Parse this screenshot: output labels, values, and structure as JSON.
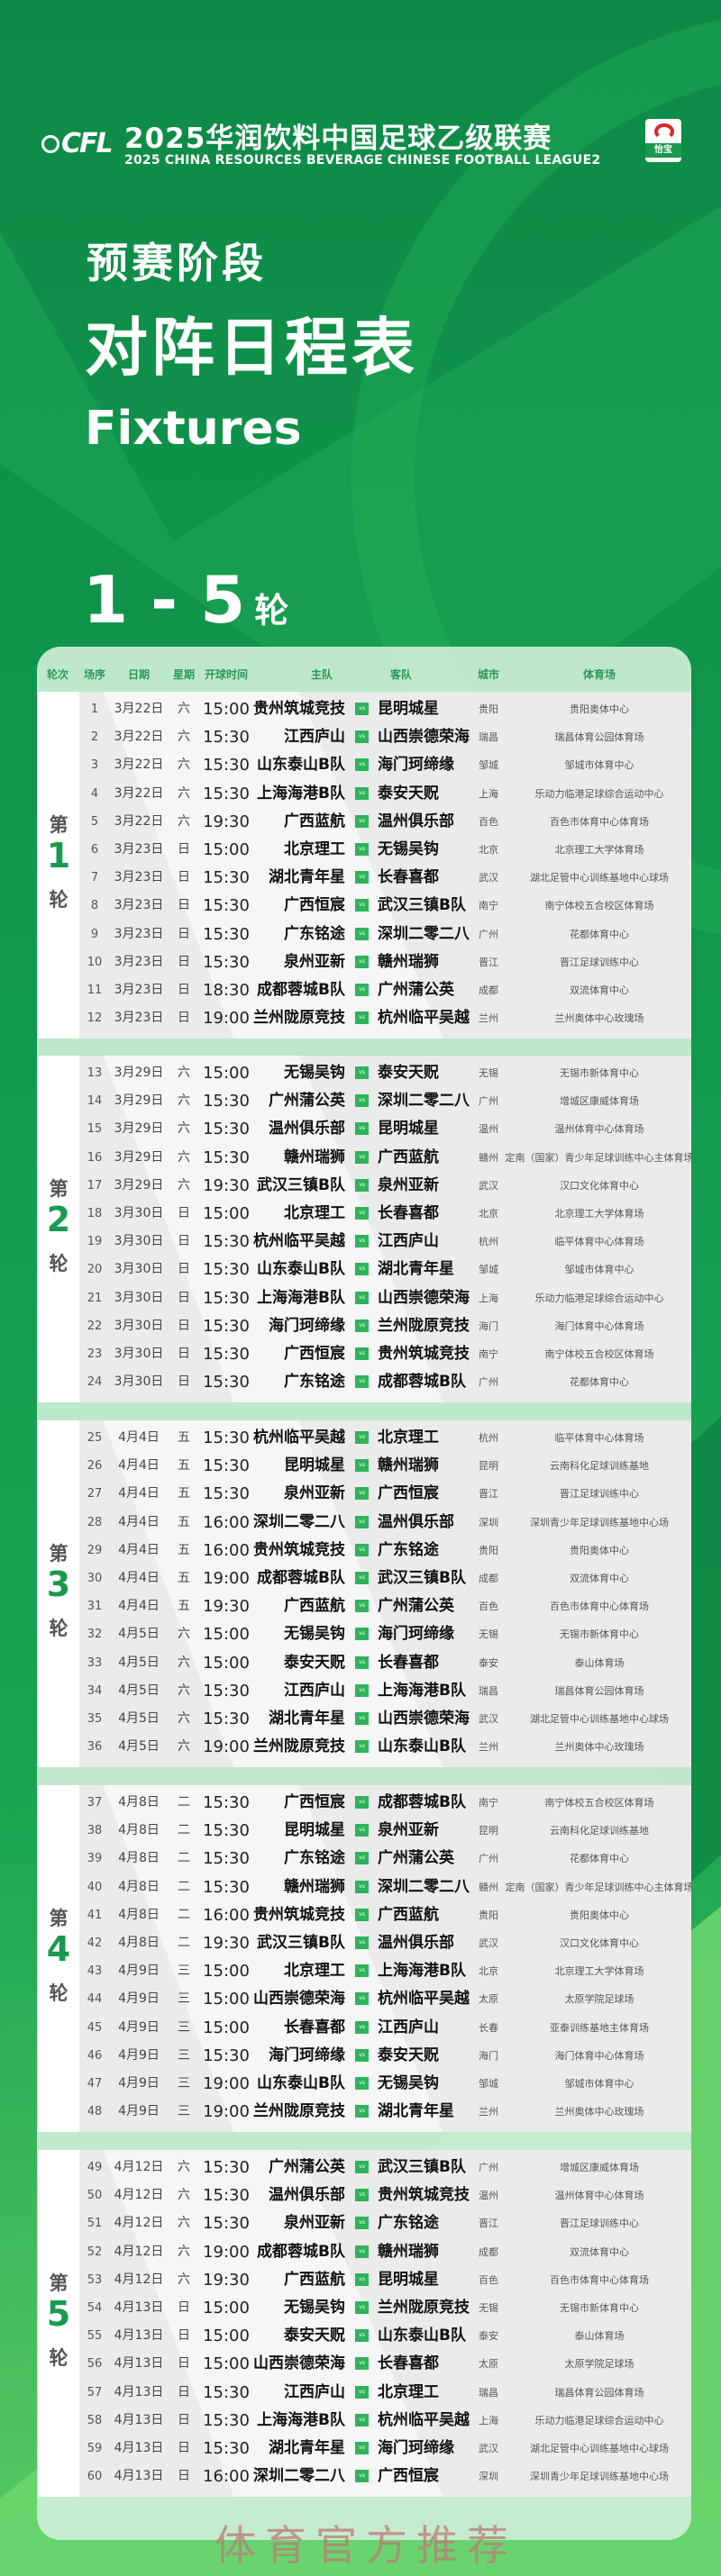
{
  "colors": {
    "accent": "#1a9a50",
    "background": "#0f8c48",
    "vs_badge": "#2fb35a",
    "header_text": "#2a9a57"
  },
  "header": {
    "logo_text": "CFL",
    "title_cn": "2025华润饮料中国足球乙级联赛",
    "title_en": "2025 CHINA RESOURCES BEVERAGE CHINESE FOOTBALL LEAGUE2",
    "sponsor_text": "怡宝"
  },
  "hero": {
    "stage": "预赛阶段",
    "schedule": "对阵日程表",
    "fixtures": "Fixtures",
    "range_num": "1 - 5",
    "range_unit": "轮"
  },
  "table": {
    "columns": [
      "轮次",
      "场序",
      "日期",
      "星期",
      "开球时间",
      "主队",
      "客队",
      "城市",
      "体育场"
    ],
    "vs_label": "vs",
    "rounds": [
      {
        "prefix": "第",
        "number": "1",
        "suffix": "轮",
        "matches": [
          {
            "no": "1",
            "date": "3月22日",
            "day": "六",
            "time": "15:00",
            "home": "贵州筑城竞技",
            "away": "昆明城星",
            "city": "贵阳",
            "venue": "贵阳奥体中心"
          },
          {
            "no": "2",
            "date": "3月22日",
            "day": "六",
            "time": "15:30",
            "home": "江西庐山",
            "away": "山西崇德荣海",
            "city": "瑞昌",
            "venue": "瑞昌体育公园体育场"
          },
          {
            "no": "3",
            "date": "3月22日",
            "day": "六",
            "time": "15:30",
            "home": "山东泰山B队",
            "away": "海门珂缔缘",
            "city": "邹城",
            "venue": "邹城市体育中心"
          },
          {
            "no": "4",
            "date": "3月22日",
            "day": "六",
            "time": "15:30",
            "home": "上海海港B队",
            "away": "泰安天贶",
            "city": "上海",
            "venue": "乐动力临港足球综合运动中心"
          },
          {
            "no": "5",
            "date": "3月22日",
            "day": "六",
            "time": "19:30",
            "home": "广西蓝航",
            "away": "温州俱乐部",
            "city": "百色",
            "venue": "百色市体育中心体育场"
          },
          {
            "no": "6",
            "date": "3月23日",
            "day": "日",
            "time": "15:00",
            "home": "北京理工",
            "away": "无锡吴钩",
            "city": "北京",
            "venue": "北京理工大学体育场"
          },
          {
            "no": "7",
            "date": "3月23日",
            "day": "日",
            "time": "15:30",
            "home": "湖北青年星",
            "away": "长春喜都",
            "city": "武汉",
            "venue": "湖北足管中心训练基地中心球场"
          },
          {
            "no": "8",
            "date": "3月23日",
            "day": "日",
            "time": "15:30",
            "home": "广西恒宸",
            "away": "武汉三镇B队",
            "city": "南宁",
            "venue": "南宁体校五合校区体育场"
          },
          {
            "no": "9",
            "date": "3月23日",
            "day": "日",
            "time": "15:30",
            "home": "广东铭途",
            "away": "深圳二零二八",
            "city": "广州",
            "venue": "花都体育中心"
          },
          {
            "no": "10",
            "date": "3月23日",
            "day": "日",
            "time": "15:30",
            "home": "泉州亚新",
            "away": "赣州瑞狮",
            "city": "晋江",
            "venue": "晋江足球训练中心"
          },
          {
            "no": "11",
            "date": "3月23日",
            "day": "日",
            "time": "18:30",
            "home": "成都蓉城B队",
            "away": "广州蒲公英",
            "city": "成都",
            "venue": "双流体育中心"
          },
          {
            "no": "12",
            "date": "3月23日",
            "day": "日",
            "time": "19:00",
            "home": "兰州陇原竞技",
            "away": "杭州临平吴越",
            "city": "兰州",
            "venue": "兰州奥体中心玫瑰场"
          }
        ]
      },
      {
        "prefix": "第",
        "number": "2",
        "suffix": "轮",
        "matches": [
          {
            "no": "13",
            "date": "3月29日",
            "day": "六",
            "time": "15:00",
            "home": "无锡吴钩",
            "away": "泰安天贶",
            "city": "无锡",
            "venue": "无锡市新体育中心"
          },
          {
            "no": "14",
            "date": "3月29日",
            "day": "六",
            "time": "15:30",
            "home": "广州蒲公英",
            "away": "深圳二零二八",
            "city": "广州",
            "venue": "增城区康威体育场"
          },
          {
            "no": "15",
            "date": "3月29日",
            "day": "六",
            "time": "15:30",
            "home": "温州俱乐部",
            "away": "昆明城星",
            "city": "温州",
            "venue": "温州体育中心体育场"
          },
          {
            "no": "16",
            "date": "3月29日",
            "day": "六",
            "time": "15:30",
            "home": "赣州瑞狮",
            "away": "广西蓝航",
            "city": "赣州",
            "venue": "定南（国家）青少年足球训练中心主体育场"
          },
          {
            "no": "17",
            "date": "3月29日",
            "day": "六",
            "time": "19:30",
            "home": "武汉三镇B队",
            "away": "泉州亚新",
            "city": "武汉",
            "venue": "汉口文化体育中心"
          },
          {
            "no": "18",
            "date": "3月30日",
            "day": "日",
            "time": "15:00",
            "home": "北京理工",
            "away": "长春喜都",
            "city": "北京",
            "venue": "北京理工大学体育场"
          },
          {
            "no": "19",
            "date": "3月30日",
            "day": "日",
            "time": "15:30",
            "home": "杭州临平吴越",
            "away": "江西庐山",
            "city": "杭州",
            "venue": "临平体育中心体育场"
          },
          {
            "no": "20",
            "date": "3月30日",
            "day": "日",
            "time": "15:30",
            "home": "山东泰山B队",
            "away": "湖北青年星",
            "city": "邹城",
            "venue": "邹城市体育中心"
          },
          {
            "no": "21",
            "date": "3月30日",
            "day": "日",
            "time": "15:30",
            "home": "上海海港B队",
            "away": "山西崇德荣海",
            "city": "上海",
            "venue": "乐动力临港足球综合运动中心"
          },
          {
            "no": "22",
            "date": "3月30日",
            "day": "日",
            "time": "15:30",
            "home": "海门珂缔缘",
            "away": "兰州陇原竞技",
            "city": "海门",
            "venue": "海门体育中心体育场"
          },
          {
            "no": "23",
            "date": "3月30日",
            "day": "日",
            "time": "15:30",
            "home": "广西恒宸",
            "away": "贵州筑城竞技",
            "city": "南宁",
            "venue": "南宁体校五合校区体育场"
          },
          {
            "no": "24",
            "date": "3月30日",
            "day": "日",
            "time": "15:30",
            "home": "广东铭途",
            "away": "成都蓉城B队",
            "city": "广州",
            "venue": "花都体育中心"
          }
        ]
      },
      {
        "prefix": "第",
        "number": "3",
        "suffix": "轮",
        "matches": [
          {
            "no": "25",
            "date": "4月4日",
            "day": "五",
            "time": "15:30",
            "home": "杭州临平吴越",
            "away": "北京理工",
            "city": "杭州",
            "venue": "临平体育中心体育场"
          },
          {
            "no": "26",
            "date": "4月4日",
            "day": "五",
            "time": "15:30",
            "home": "昆明城星",
            "away": "赣州瑞狮",
            "city": "昆明",
            "venue": "云南科化足球训练基地"
          },
          {
            "no": "27",
            "date": "4月4日",
            "day": "五",
            "time": "15:30",
            "home": "泉州亚新",
            "away": "广西恒宸",
            "city": "晋江",
            "venue": "晋江足球训练中心"
          },
          {
            "no": "28",
            "date": "4月4日",
            "day": "五",
            "time": "16:00",
            "home": "深圳二零二八",
            "away": "温州俱乐部",
            "city": "深圳",
            "venue": "深圳青少年足球训练基地中心场"
          },
          {
            "no": "29",
            "date": "4月4日",
            "day": "五",
            "time": "16:00",
            "home": "贵州筑城竞技",
            "away": "广东铭途",
            "city": "贵阳",
            "venue": "贵阳奥体中心"
          },
          {
            "no": "30",
            "date": "4月4日",
            "day": "五",
            "time": "19:00",
            "home": "成都蓉城B队",
            "away": "武汉三镇B队",
            "city": "成都",
            "venue": "双流体育中心"
          },
          {
            "no": "31",
            "date": "4月4日",
            "day": "五",
            "time": "19:30",
            "home": "广西蓝航",
            "away": "广州蒲公英",
            "city": "百色",
            "venue": "百色市体育中心体育场"
          },
          {
            "no": "32",
            "date": "4月5日",
            "day": "六",
            "time": "15:00",
            "home": "无锡吴钩",
            "away": "海门珂缔缘",
            "city": "无锡",
            "venue": "无锡市新体育中心"
          },
          {
            "no": "33",
            "date": "4月5日",
            "day": "六",
            "time": "15:00",
            "home": "泰安天贶",
            "away": "长春喜都",
            "city": "泰安",
            "venue": "泰山体育场"
          },
          {
            "no": "34",
            "date": "4月5日",
            "day": "六",
            "time": "15:30",
            "home": "江西庐山",
            "away": "上海海港B队",
            "city": "瑞昌",
            "venue": "瑞昌体育公园体育场"
          },
          {
            "no": "35",
            "date": "4月5日",
            "day": "六",
            "time": "15:30",
            "home": "湖北青年星",
            "away": "山西崇德荣海",
            "city": "武汉",
            "venue": "湖北足管中心训练基地中心球场"
          },
          {
            "no": "36",
            "date": "4月5日",
            "day": "六",
            "time": "19:00",
            "home": "兰州陇原竞技",
            "away": "山东泰山B队",
            "city": "兰州",
            "venue": "兰州奥体中心玫瑰场"
          }
        ]
      },
      {
        "prefix": "第",
        "number": "4",
        "suffix": "轮",
        "matches": [
          {
            "no": "37",
            "date": "4月8日",
            "day": "二",
            "time": "15:30",
            "home": "广西恒宸",
            "away": "成都蓉城B队",
            "city": "南宁",
            "venue": "南宁体校五合校区体育场"
          },
          {
            "no": "38",
            "date": "4月8日",
            "day": "二",
            "time": "15:30",
            "home": "昆明城星",
            "away": "泉州亚新",
            "city": "昆明",
            "venue": "云南科化足球训练基地"
          },
          {
            "no": "39",
            "date": "4月8日",
            "day": "二",
            "time": "15:30",
            "home": "广东铭途",
            "away": "广州蒲公英",
            "city": "广州",
            "venue": "花都体育中心"
          },
          {
            "no": "40",
            "date": "4月8日",
            "day": "二",
            "time": "15:30",
            "home": "赣州瑞狮",
            "away": "深圳二零二八",
            "city": "赣州",
            "venue": "定南（国家）青少年足球训练中心主体育场"
          },
          {
            "no": "41",
            "date": "4月8日",
            "day": "二",
            "time": "16:00",
            "home": "贵州筑城竞技",
            "away": "广西蓝航",
            "city": "贵阳",
            "venue": "贵阳奥体中心"
          },
          {
            "no": "42",
            "date": "4月8日",
            "day": "二",
            "time": "19:30",
            "home": "武汉三镇B队",
            "away": "温州俱乐部",
            "city": "武汉",
            "venue": "汉口文化体育中心"
          },
          {
            "no": "43",
            "date": "4月9日",
            "day": "三",
            "time": "15:00",
            "home": "北京理工",
            "away": "上海海港B队",
            "city": "北京",
            "venue": "北京理工大学体育场"
          },
          {
            "no": "44",
            "date": "4月9日",
            "day": "三",
            "time": "15:00",
            "home": "山西崇德荣海",
            "away": "杭州临平吴越",
            "city": "太原",
            "venue": "太原学院足球场"
          },
          {
            "no": "45",
            "date": "4月9日",
            "day": "三",
            "time": "15:00",
            "home": "长春喜都",
            "away": "江西庐山",
            "city": "长春",
            "venue": "亚泰训练基地主体育场"
          },
          {
            "no": "46",
            "date": "4月9日",
            "day": "三",
            "time": "15:30",
            "home": "海门珂缔缘",
            "away": "泰安天贶",
            "city": "海门",
            "venue": "海门体育中心体育场"
          },
          {
            "no": "47",
            "date": "4月9日",
            "day": "三",
            "time": "19:00",
            "home": "山东泰山B队",
            "away": "无锡吴钩",
            "city": "邹城",
            "venue": "邹城市体育中心"
          },
          {
            "no": "48",
            "date": "4月9日",
            "day": "三",
            "time": "19:00",
            "home": "兰州陇原竞技",
            "away": "湖北青年星",
            "city": "兰州",
            "venue": "兰州奥体中心玫瑰场"
          }
        ]
      },
      {
        "prefix": "第",
        "number": "5",
        "suffix": "轮",
        "matches": [
          {
            "no": "49",
            "date": "4月12日",
            "day": "六",
            "time": "15:30",
            "home": "广州蒲公英",
            "away": "武汉三镇B队",
            "city": "广州",
            "venue": "增城区康威体育场"
          },
          {
            "no": "50",
            "date": "4月12日",
            "day": "六",
            "time": "15:30",
            "home": "温州俱乐部",
            "away": "贵州筑城竞技",
            "city": "温州",
            "venue": "温州体育中心体育场"
          },
          {
            "no": "51",
            "date": "4月12日",
            "day": "六",
            "time": "15:30",
            "home": "泉州亚新",
            "away": "广东铭途",
            "city": "晋江",
            "venue": "晋江足球训练中心"
          },
          {
            "no": "52",
            "date": "4月12日",
            "day": "六",
            "time": "19:00",
            "home": "成都蓉城B队",
            "away": "赣州瑞狮",
            "city": "成都",
            "venue": "双流体育中心"
          },
          {
            "no": "53",
            "date": "4月12日",
            "day": "六",
            "time": "19:30",
            "home": "广西蓝航",
            "away": "昆明城星",
            "city": "百色",
            "venue": "百色市体育中心体育场"
          },
          {
            "no": "54",
            "date": "4月13日",
            "day": "日",
            "time": "15:00",
            "home": "无锡吴钩",
            "away": "兰州陇原竞技",
            "city": "无锡",
            "venue": "无锡市新体育中心"
          },
          {
            "no": "55",
            "date": "4月13日",
            "day": "日",
            "time": "15:00",
            "home": "泰安天贶",
            "away": "山东泰山B队",
            "city": "泰安",
            "venue": "泰山体育场"
          },
          {
            "no": "56",
            "date": "4月13日",
            "day": "日",
            "time": "15:00",
            "home": "山西崇德荣海",
            "away": "长春喜都",
            "city": "太原",
            "venue": "太原学院足球场"
          },
          {
            "no": "57",
            "date": "4月13日",
            "day": "日",
            "time": "15:30",
            "home": "江西庐山",
            "away": "北京理工",
            "city": "瑞昌",
            "venue": "瑞昌体育公园体育场"
          },
          {
            "no": "58",
            "date": "4月13日",
            "day": "日",
            "time": "15:30",
            "home": "上海海港B队",
            "away": "杭州临平吴越",
            "city": "上海",
            "venue": "乐动力临港足球综合运动中心"
          },
          {
            "no": "59",
            "date": "4月13日",
            "day": "日",
            "time": "15:30",
            "home": "湖北青年星",
            "away": "海门珂缔缘",
            "city": "武汉",
            "venue": "湖北足管中心训练基地中心球场"
          },
          {
            "no": "60",
            "date": "4月13日",
            "day": "日",
            "time": "16:00",
            "home": "深圳二零二八",
            "away": "广西恒宸",
            "city": "深圳",
            "venue": "深圳青少年足球训练基地中心场"
          }
        ]
      }
    ]
  },
  "watermark": "体育官方推荐"
}
